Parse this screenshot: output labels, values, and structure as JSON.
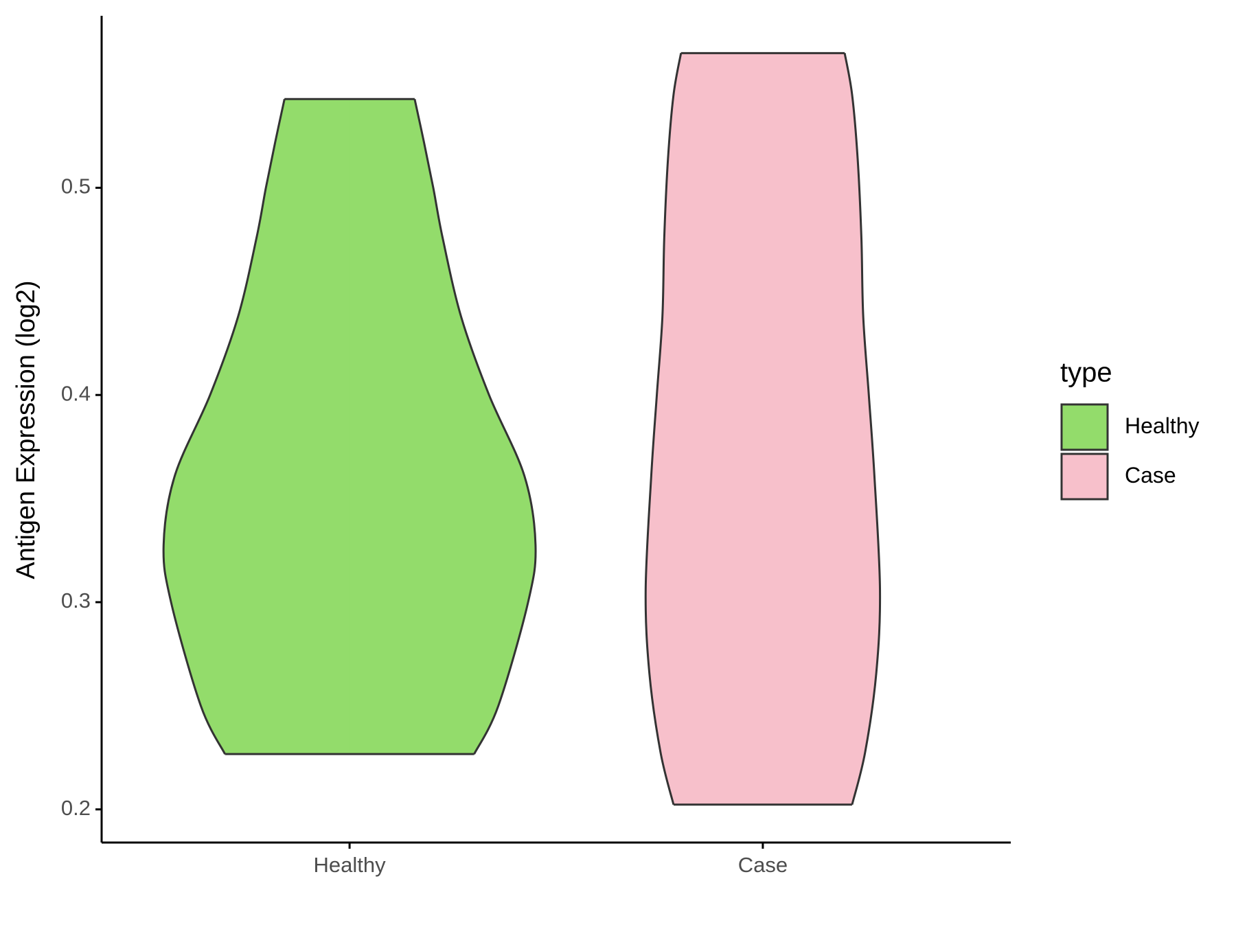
{
  "chart_data": {
    "type": "violin",
    "y_label": "Antigen Expression (log2)",
    "categories": [
      "Healthy",
      "Case"
    ],
    "ylim": [
      0.184,
      0.583
    ],
    "yticks": [
      0.2,
      0.3,
      0.4,
      0.5
    ],
    "legend_title": "type",
    "legend_position": "right",
    "series": [
      {
        "name": "Healthy",
        "color": "#93dc6b",
        "y": [
          0.2267,
          0.25,
          0.3,
          0.3276,
          0.361,
          0.4,
          0.4377,
          0.476,
          0.5,
          0.522,
          0.5428
        ],
        "density": [
          0.67,
          0.8,
          0.96,
          1.0,
          0.94,
          0.75,
          0.6,
          0.5,
          0.45,
          0.4,
          0.35
        ]
      },
      {
        "name": "Case",
        "color": "#f7c0cb",
        "y": [
          0.2023,
          0.2275,
          0.2657,
          0.306,
          0.361,
          0.4,
          0.4377,
          0.476,
          0.514,
          0.545,
          0.565
        ],
        "density": [
          0.48,
          0.55,
          0.61,
          0.63,
          0.6,
          0.57,
          0.54,
          0.53,
          0.51,
          0.48,
          0.44
        ]
      }
    ]
  }
}
